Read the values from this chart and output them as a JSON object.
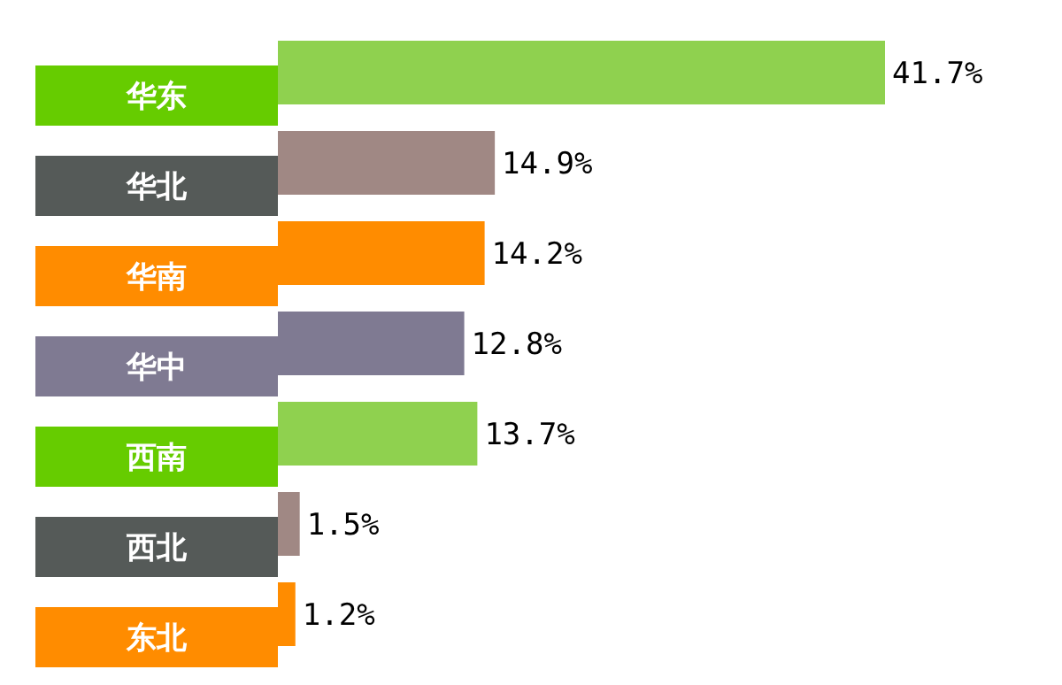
{
  "chart_data": {
    "type": "bar",
    "orientation": "horizontal",
    "categories": [
      "华东",
      "华北",
      "华南",
      "华中",
      "西南",
      "西北",
      "东北"
    ],
    "values": [
      41.7,
      14.9,
      14.2,
      12.8,
      13.7,
      1.5,
      1.2
    ],
    "value_labels": [
      "41.7%",
      "14.9%",
      "14.2%",
      "12.8%",
      "13.7%",
      "1.5%",
      "1.2%"
    ],
    "colors": [
      "#8fd14f",
      "#a08884",
      "#ff8c00",
      "#7f7a92",
      "#8fd14f",
      "#a08884",
      "#ff8c00"
    ]
  }
}
